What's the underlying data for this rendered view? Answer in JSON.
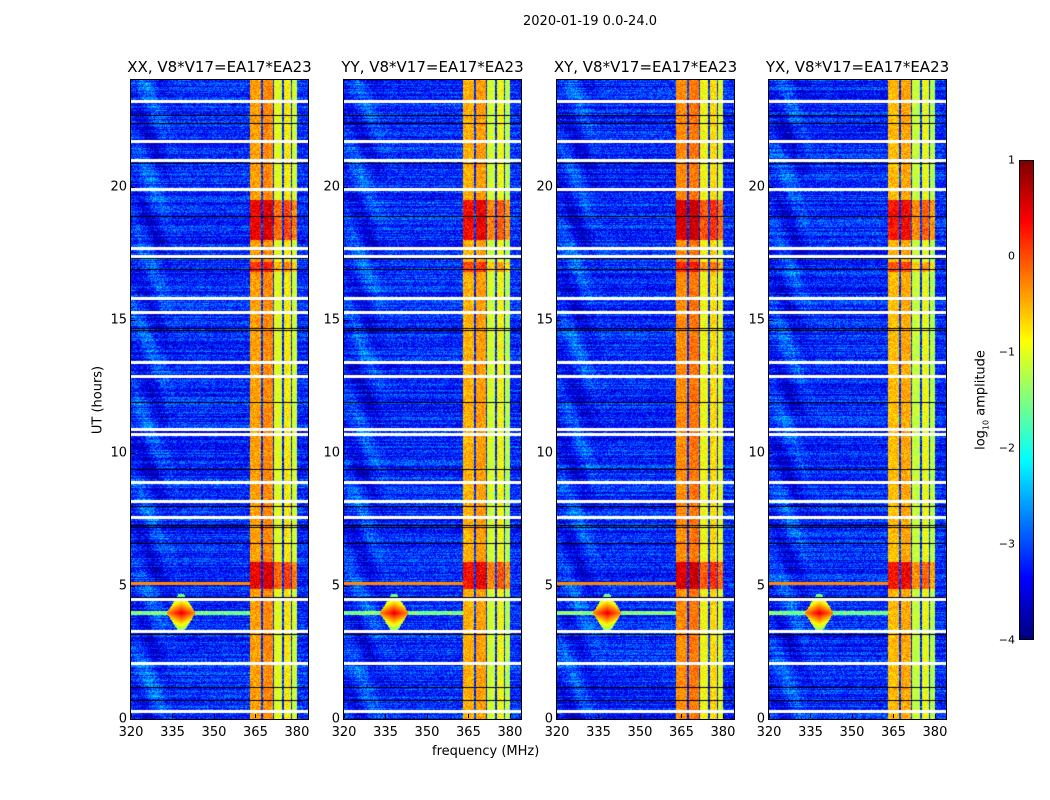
{
  "chart_data": {
    "type": "heatmap",
    "title": "2020-01-19 0.0-24.0",
    "xlabel": "frequency (MHz)",
    "ylabel": "UT (hours)",
    "xlim": [
      320,
      384
    ],
    "ylim": [
      0,
      24
    ],
    "xticks": [
      "320",
      "335",
      "350",
      "365",
      "380"
    ],
    "yticks": [
      "0",
      "5",
      "10",
      "15",
      "20"
    ],
    "panels": [
      {
        "title": "XX, V8*V17=EA17*EA23",
        "band_offset": 0.0
      },
      {
        "title": "YY, V8*V17=EA17*EA23",
        "band_offset": -0.1
      },
      {
        "title": "XY, V8*V17=EA17*EA23",
        "band_offset": 0.1
      },
      {
        "title": "YX, V8*V17=EA17*EA23",
        "band_offset": -0.15
      }
    ],
    "colorbar": {
      "label": "log10 amplitude",
      "label_main": "log",
      "label_sub": "10",
      "label_rest": " amplitude",
      "range": [
        -4,
        1
      ],
      "ticks": [
        "1",
        "0",
        "−1",
        "−2",
        "−3",
        "−4"
      ],
      "colormap": "jet"
    },
    "background_level": -3.2,
    "bright_columns": [
      {
        "f": [
          363,
          367
        ],
        "level": -0.4
      },
      {
        "f": [
          367.5,
          371
        ],
        "level": -0.3
      },
      {
        "f": [
          371.5,
          374.5
        ],
        "level": -1.0
      },
      {
        "f": [
          375,
          377.5
        ],
        "level": -0.8
      },
      {
        "f": [
          378,
          380
        ],
        "level": -1.1
      }
    ],
    "bright_time_ranges": [
      {
        "t": [
          18.0,
          19.5
        ],
        "boost": 1.0
      },
      {
        "t": [
          4.9,
          5.9
        ],
        "boost": 1.0
      },
      {
        "t": [
          16.8,
          17.2
        ],
        "boost": 0.6
      }
    ],
    "rfi_burst": {
      "f_center": 338,
      "t_center": 4.0,
      "level": 0.5
    },
    "rfi_line_hours": [
      5.1
    ],
    "flagged_white_hours": [
      0.3,
      2.1,
      3.3,
      4.5,
      7.6,
      8.2,
      8.9,
      10.7,
      10.9,
      12.9,
      13.4,
      15.3,
      15.8,
      17.4,
      17.7,
      19.9,
      21.0,
      21.7,
      23.2
    ],
    "flagged_black_hours": [
      0.7,
      1.2,
      3.2,
      4.6,
      6.6,
      7.2,
      7.3,
      8.0,
      9.4,
      11.9,
      14.6,
      14.7,
      16.9,
      17.3,
      18.9,
      20.9,
      22.4,
      22.7
    ]
  }
}
